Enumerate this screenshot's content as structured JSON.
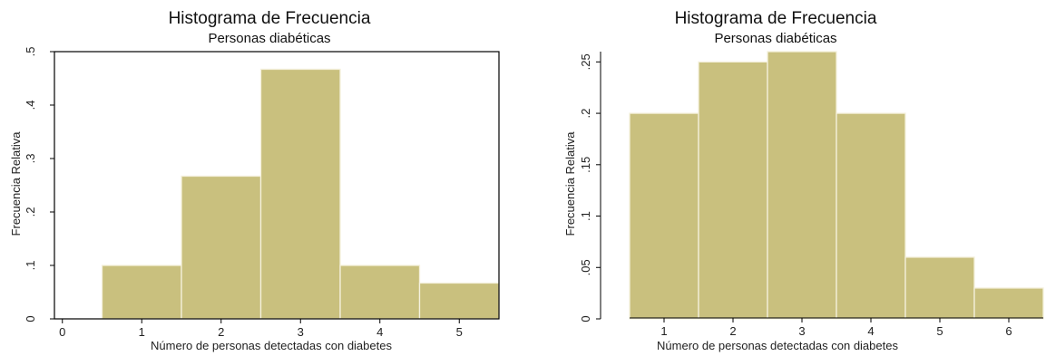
{
  "chart_data": [
    {
      "type": "bar",
      "title": "Histograma de Frecuencia",
      "subtitle": "Personas diabéticas",
      "xlabel": "Número de personas detectadas con diabetes",
      "ylabel": "Frecuencia Relativa",
      "x_ticks": [
        "0",
        "1",
        "2",
        "3",
        "4",
        "5"
      ],
      "y_ticks": [
        "0",
        ".1",
        ".2",
        ".3",
        ".4",
        ".5"
      ],
      "xlim": [
        -0.1,
        5.5
      ],
      "ylim": [
        0,
        0.5
      ],
      "categories": [
        "1",
        "2",
        "3",
        "4",
        "5"
      ],
      "values": [
        0.1,
        0.267,
        0.467,
        0.1,
        0.067
      ],
      "grid": false,
      "bar_color": "#c9c07e"
    },
    {
      "type": "bar",
      "title": "Histograma de Frecuencia",
      "subtitle": "Personas diabéticas",
      "xlabel": "Número de personas detectadas con diabetes",
      "ylabel": "Frecuencia Relativa",
      "x_ticks": [
        "1",
        "2",
        "3",
        "4",
        "5",
        "6"
      ],
      "y_ticks": [
        "0",
        ".05",
        ".1",
        ".15",
        ".2",
        ".25"
      ],
      "xlim": [
        0.5,
        6.5
      ],
      "ylim": [
        0,
        0.26
      ],
      "categories": [
        "1",
        "2",
        "3",
        "4",
        "5",
        "6"
      ],
      "values": [
        0.2,
        0.25,
        0.26,
        0.2,
        0.06,
        0.03
      ],
      "grid": false,
      "bar_color": "#c9c07e"
    }
  ]
}
